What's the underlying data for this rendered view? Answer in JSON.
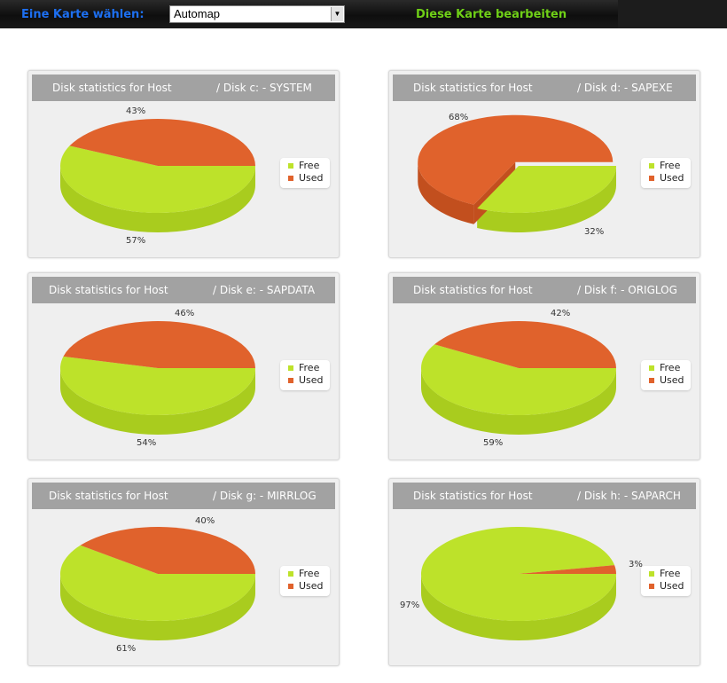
{
  "toolbar": {
    "map_label": "Eine Karte wählen:",
    "selected_map": "Automap",
    "edit_label": "Diese Karte bearbeiten"
  },
  "colors": {
    "free": "#bde22a",
    "used": "#e0622c"
  },
  "chart_data": [
    {
      "type": "pie",
      "title_prefix": "Disk statistics for Host",
      "title": "/ Disk c: - SYSTEM",
      "series": [
        {
          "name": "Free",
          "value": 57,
          "label": "57%"
        },
        {
          "name": "Used",
          "value": 43,
          "label": "43%"
        }
      ],
      "legend": "right"
    },
    {
      "type": "pie",
      "title_prefix": "Disk statistics for Host",
      "title": "/ Disk d: - SAPEXE",
      "series": [
        {
          "name": "Free",
          "value": 32,
          "label": "32%"
        },
        {
          "name": "Used",
          "value": 68,
          "label": "68%"
        }
      ],
      "legend": "right"
    },
    {
      "type": "pie",
      "title_prefix": "Disk statistics for Host",
      "title": "/ Disk e: - SAPDATA",
      "series": [
        {
          "name": "Free",
          "value": 54,
          "label": "54%"
        },
        {
          "name": "Used",
          "value": 46,
          "label": "46%"
        }
      ],
      "legend": "right"
    },
    {
      "type": "pie",
      "title_prefix": "Disk statistics for Host",
      "title": "/ Disk f: - ORIGLOG",
      "series": [
        {
          "name": "Free",
          "value": 59,
          "label": "59%"
        },
        {
          "name": "Used",
          "value": 42,
          "label": "42%"
        }
      ],
      "legend": "right"
    },
    {
      "type": "pie",
      "title_prefix": "Disk statistics for Host",
      "title": "/ Disk g: - MIRRLOG",
      "series": [
        {
          "name": "Free",
          "value": 61,
          "label": "61%"
        },
        {
          "name": "Used",
          "value": 40,
          "label": "40%"
        }
      ],
      "legend": "right"
    },
    {
      "type": "pie",
      "title_prefix": "Disk statistics for Host",
      "title": "/ Disk h: - SAPARCH",
      "series": [
        {
          "name": "Free",
          "value": 97,
          "label": "97%"
        },
        {
          "name": "Used",
          "value": 3,
          "label": "3%"
        }
      ],
      "legend": "right"
    }
  ]
}
